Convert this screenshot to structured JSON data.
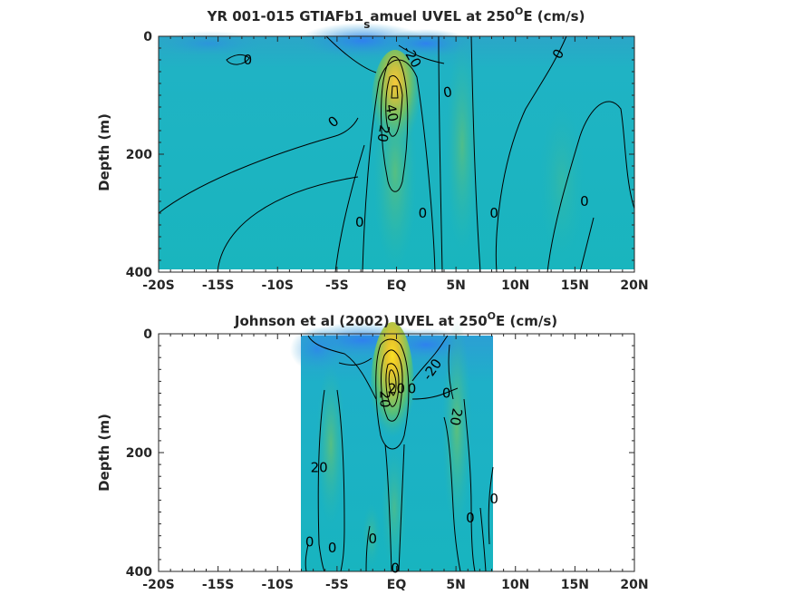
{
  "chart_data": [
    {
      "type": "heatmap",
      "title_main": "YR 001-015 GTIAFb1",
      "title_sub": "s",
      "title_rest": "amuel UVEL at 250",
      "title_sup": "O",
      "title_end": "E (cm/s)",
      "ylabel": "Depth (m)",
      "xlim": [
        -20,
        20
      ],
      "ylim": [
        0,
        400
      ],
      "x_ticks": [
        {
          "value": -20,
          "label": "-20S"
        },
        {
          "value": -15,
          "label": "-15S"
        },
        {
          "value": -10,
          "label": "-10S"
        },
        {
          "value": -5,
          "label": "-5S"
        },
        {
          "value": 0,
          "label": "EQ"
        },
        {
          "value": 5,
          "label": "5N"
        },
        {
          "value": 10,
          "label": "10N"
        },
        {
          "value": 15,
          "label": "15N"
        },
        {
          "value": 20,
          "label": "20N"
        }
      ],
      "y_ticks": [
        {
          "value": 0,
          "label": "0"
        },
        {
          "value": 200,
          "label": "200"
        },
        {
          "value": 400,
          "label": "400"
        }
      ],
      "data_extent": [
        -20,
        20
      ],
      "contour_labels": [
        {
          "text": "0",
          "x": -12.5,
          "y": 40,
          "rot": 0
        },
        {
          "text": "-20",
          "x": 1.3,
          "y": 35,
          "rot": 60
        },
        {
          "text": "0",
          "x": 13.6,
          "y": 30,
          "rot": -60
        },
        {
          "text": "0",
          "x": 4.3,
          "y": 95,
          "rot": -10
        },
        {
          "text": "0",
          "x": -5.3,
          "y": 145,
          "rot": -40
        },
        {
          "text": "40",
          "x": -0.4,
          "y": 130,
          "rot": 80
        },
        {
          "text": "20",
          "x": -1.1,
          "y": 165,
          "rot": 100
        },
        {
          "text": "0",
          "x": 15.8,
          "y": 280,
          "rot": 0
        },
        {
          "text": "0",
          "x": 2.2,
          "y": 300,
          "rot": 0
        },
        {
          "text": "0",
          "x": 8.2,
          "y": 300,
          "rot": 0
        },
        {
          "text": "0",
          "x": -3.1,
          "y": 315,
          "rot": 0
        }
      ]
    },
    {
      "type": "heatmap",
      "title_main": "Johnson et al (2002) UVEL at 250",
      "title_sup": "O",
      "title_end": "E (cm/s)",
      "ylabel": "Depth (m)",
      "xlim": [
        -20,
        20
      ],
      "ylim": [
        0,
        400
      ],
      "x_ticks": [
        {
          "value": -20,
          "label": "-20S"
        },
        {
          "value": -15,
          "label": "-15S"
        },
        {
          "value": -10,
          "label": "-10S"
        },
        {
          "value": -5,
          "label": "-5S"
        },
        {
          "value": 0,
          "label": "EQ"
        },
        {
          "value": 5,
          "label": "5N"
        },
        {
          "value": 10,
          "label": "10N"
        },
        {
          "value": 15,
          "label": "15N"
        },
        {
          "value": 20,
          "label": "20N"
        }
      ],
      "y_ticks": [
        {
          "value": 0,
          "label": "0"
        },
        {
          "value": 200,
          "label": "200"
        },
        {
          "value": 400,
          "label": "400"
        }
      ],
      "data_extent": [
        -8,
        8.2
      ],
      "contour_labels": [
        {
          "text": "-20",
          "x": 3.0,
          "y": 60,
          "rot": -55
        },
        {
          "text": "20",
          "x": 0.0,
          "y": 92,
          "rot": 0
        },
        {
          "text": "0",
          "x": 1.3,
          "y": 92,
          "rot": 0
        },
        {
          "text": "20",
          "x": -1.0,
          "y": 110,
          "rot": 90
        },
        {
          "text": "0",
          "x": 4.2,
          "y": 100,
          "rot": 0
        },
        {
          "text": "20",
          "x": 5.0,
          "y": 140,
          "rot": 100
        },
        {
          "text": "20",
          "x": -6.5,
          "y": 225,
          "rot": 0
        },
        {
          "text": "0",
          "x": 8.2,
          "y": 278,
          "rot": 0
        },
        {
          "text": "0",
          "x": 6.2,
          "y": 310,
          "rot": 0
        },
        {
          "text": "0",
          "x": -7.3,
          "y": 350,
          "rot": 0
        },
        {
          "text": "0",
          "x": -5.4,
          "y": 360,
          "rot": 0
        },
        {
          "text": "0",
          "x": -2.0,
          "y": 345,
          "rot": 0
        },
        {
          "text": "0",
          "x": -0.1,
          "y": 395,
          "rot": 0
        }
      ]
    }
  ]
}
